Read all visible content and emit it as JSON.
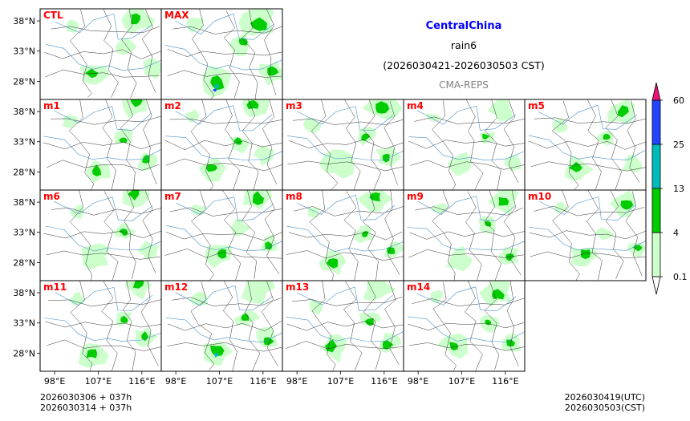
{
  "chart_data": {
    "type": "heatmap",
    "title": "CentralChina",
    "subtitle": "rain6",
    "period": "(2026030421-2026030503 CST)",
    "source": "CMA-REPS",
    "x_tick_labels": [
      "98°E",
      "107°E",
      "116°E"
    ],
    "y_tick_labels": [
      "38°N",
      "33°N",
      "28°N"
    ],
    "x_ticks_deg": [
      98,
      107,
      116
    ],
    "y_ticks_deg": [
      38,
      33,
      28
    ],
    "lon_range": [
      95,
      120
    ],
    "lat_range": [
      25,
      40
    ],
    "colorbar": {
      "levels": [
        "0.1",
        "4",
        "13",
        "25",
        "60"
      ],
      "colors": [
        "#ccffcc",
        "#00cc00",
        "#00bbbb",
        "#2244ff"
      ],
      "extend_low": "#ffffff",
      "extend_high": "#ee1177"
    },
    "panels": [
      {
        "label": "CTL",
        "intensity": 0.55,
        "seed": 1
      },
      {
        "label": "MAX",
        "intensity": 1.0,
        "seed": 2
      },
      {
        "label": "m1",
        "intensity": 0.55,
        "seed": 3
      },
      {
        "label": "m2",
        "intensity": 0.6,
        "seed": 4
      },
      {
        "label": "m3",
        "intensity": 0.8,
        "seed": 5
      },
      {
        "label": "m4",
        "intensity": 0.45,
        "seed": 6
      },
      {
        "label": "m5",
        "intensity": 0.6,
        "seed": 7
      },
      {
        "label": "m6",
        "intensity": 0.65,
        "seed": 8
      },
      {
        "label": "m7",
        "intensity": 0.65,
        "seed": 9
      },
      {
        "label": "m8",
        "intensity": 0.55,
        "seed": 10
      },
      {
        "label": "m9",
        "intensity": 0.55,
        "seed": 11
      },
      {
        "label": "m10",
        "intensity": 0.5,
        "seed": 12
      },
      {
        "label": "m11",
        "intensity": 0.6,
        "seed": 13
      },
      {
        "label": "m12",
        "intensity": 0.75,
        "seed": 14
      },
      {
        "label": "m13",
        "intensity": 0.7,
        "seed": 15
      },
      {
        "label": "m14",
        "intensity": 0.6,
        "seed": 16
      }
    ]
  },
  "footer": {
    "init_line1": "2026030306  +  037h",
    "init_line2": "2026030314  +  037h",
    "valid_utc": "2026030419(UTC)",
    "valid_cst": "2026030503(CST)"
  }
}
